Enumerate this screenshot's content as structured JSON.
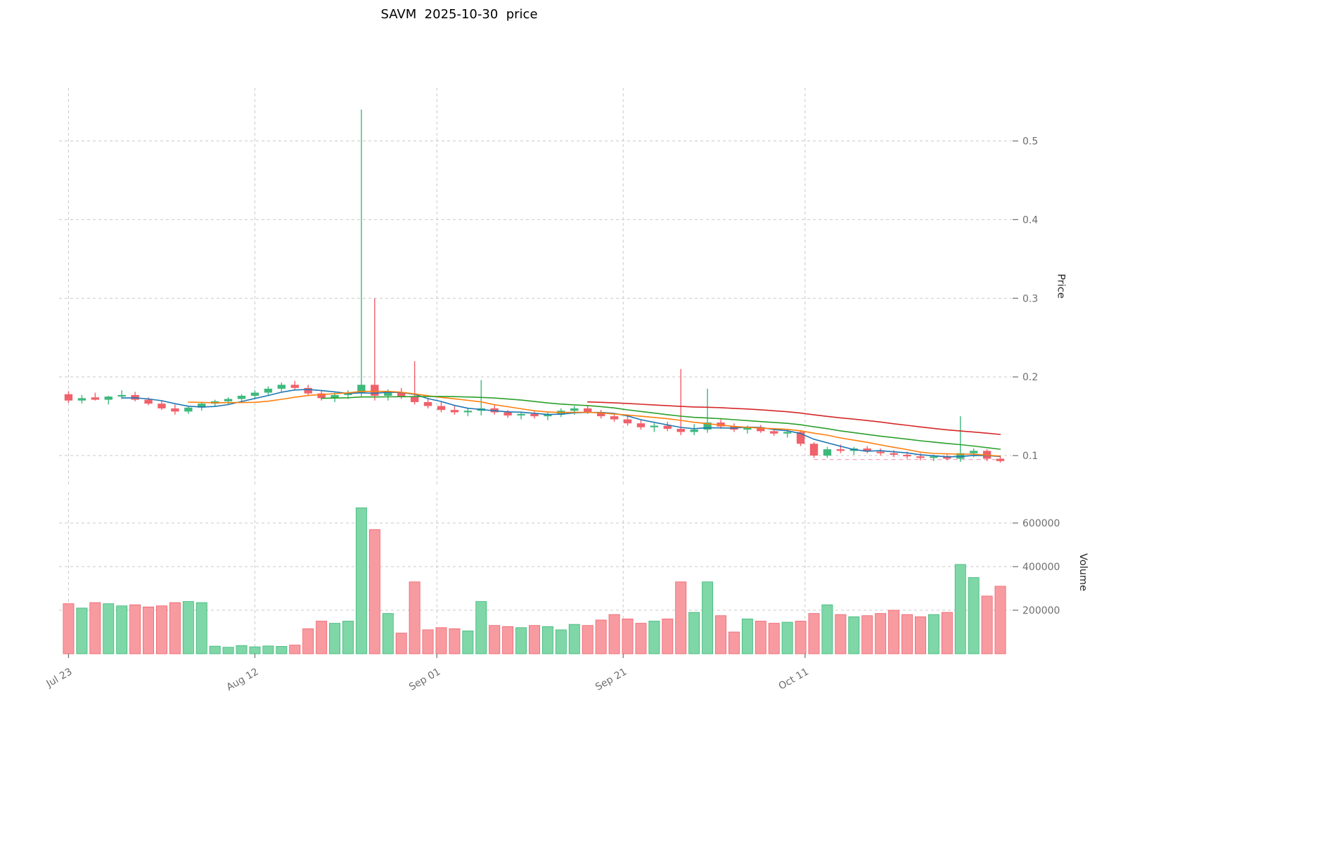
{
  "title": "SAVM  2025-10-30  price",
  "axes": {
    "price_label": "Price",
    "volume_label": "Volume",
    "price_ticks": [
      {
        "value": 0.1,
        "label": "0.1"
      },
      {
        "value": 0.2,
        "label": "0.2"
      },
      {
        "value": 0.3,
        "label": "0.3"
      },
      {
        "value": 0.4,
        "label": "0.4"
      },
      {
        "value": 0.5,
        "label": "0.5"
      }
    ],
    "volume_ticks": [
      {
        "value": 200000,
        "label": "200000"
      },
      {
        "value": 400000,
        "label": "400000"
      },
      {
        "value": 600000,
        "label": "600000"
      }
    ],
    "x_ticks": [
      {
        "index": 0,
        "label": "Jul 23"
      },
      {
        "index": 14,
        "label": "Aug 12"
      },
      {
        "index": 27.67,
        "label": "Sep 01"
      },
      {
        "index": 41.67,
        "label": "Sep 21"
      },
      {
        "index": 55.33,
        "label": "Oct 11"
      }
    ]
  },
  "style": {
    "up_color": "#3db97c",
    "down_color": "#f0616b",
    "volume_up_color": "#7fd6a6",
    "volume_down_color": "#f79ba1",
    "grid_color": "#c9c9c9",
    "tick_color": "#6e6e6e",
    "title_color": "#000000"
  },
  "annotations": {
    "support_line": {
      "price": 0.095,
      "start_index": 56,
      "color": "#f3a6ba"
    }
  },
  "chart_data": {
    "type": "candlestick",
    "symbol": "SAVM",
    "as_of_date": "2025-10-30",
    "grid": true,
    "legend_position": "none",
    "price_ylim": [
      0.0625,
      0.5675
    ],
    "volume_ylim": [
      0,
      742000
    ],
    "columns": [
      "date",
      "open",
      "high",
      "low",
      "close",
      "volume"
    ],
    "moving_averages": [
      {
        "window": 5,
        "color": "#1f77b4"
      },
      {
        "window": 10,
        "color": "#ff7f0e"
      },
      {
        "window": 20,
        "color": "#2ca02c"
      },
      {
        "window": 40,
        "color": "#d62728"
      }
    ],
    "rows": [
      [
        "2025-07-23",
        0.178,
        0.182,
        0.167,
        0.17,
        230000
      ],
      [
        "2025-07-24",
        0.17,
        0.177,
        0.166,
        0.173,
        210000
      ],
      [
        "2025-07-25",
        0.174,
        0.18,
        0.17,
        0.171,
        235000
      ],
      [
        "2025-07-28",
        0.171,
        0.176,
        0.165,
        0.175,
        230000
      ],
      [
        "2025-07-29",
        0.175,
        0.183,
        0.172,
        0.177,
        220000
      ],
      [
        "2025-07-30",
        0.177,
        0.181,
        0.169,
        0.171,
        225000
      ],
      [
        "2025-07-31",
        0.171,
        0.174,
        0.164,
        0.166,
        215000
      ],
      [
        "2025-08-01",
        0.166,
        0.17,
        0.158,
        0.16,
        220000
      ],
      [
        "2025-08-04",
        0.16,
        0.165,
        0.152,
        0.156,
        235000
      ],
      [
        "2025-08-05",
        0.156,
        0.163,
        0.153,
        0.161,
        240000
      ],
      [
        "2025-08-06",
        0.161,
        0.168,
        0.157,
        0.166,
        235000
      ],
      [
        "2025-08-07",
        0.166,
        0.171,
        0.162,
        0.169,
        35000
      ],
      [
        "2025-08-08",
        0.169,
        0.174,
        0.165,
        0.172,
        30000
      ],
      [
        "2025-08-11",
        0.172,
        0.178,
        0.168,
        0.176,
        38000
      ],
      [
        "2025-08-12",
        0.176,
        0.183,
        0.172,
        0.18,
        32000
      ],
      [
        "2025-08-13",
        0.18,
        0.188,
        0.176,
        0.185,
        36000
      ],
      [
        "2025-08-14",
        0.185,
        0.193,
        0.181,
        0.19,
        34000
      ],
      [
        "2025-08-15",
        0.19,
        0.195,
        0.183,
        0.186,
        40000
      ],
      [
        "2025-08-18",
        0.186,
        0.19,
        0.176,
        0.179,
        115000
      ],
      [
        "2025-08-19",
        0.179,
        0.183,
        0.17,
        0.173,
        150000
      ],
      [
        "2025-08-20",
        0.173,
        0.18,
        0.168,
        0.177,
        140000
      ],
      [
        "2025-08-21",
        0.177,
        0.183,
        0.172,
        0.18,
        150000
      ],
      [
        "2025-08-22",
        0.18,
        0.54,
        0.174,
        0.19,
        670000
      ],
      [
        "2025-08-25",
        0.19,
        0.3,
        0.17,
        0.176,
        570000
      ],
      [
        "2025-08-26",
        0.176,
        0.184,
        0.17,
        0.18,
        185000
      ],
      [
        "2025-08-27",
        0.18,
        0.186,
        0.172,
        0.175,
        95000
      ],
      [
        "2025-08-28",
        0.175,
        0.22,
        0.165,
        0.168,
        330000
      ],
      [
        "2025-08-29",
        0.168,
        0.173,
        0.16,
        0.163,
        110000
      ],
      [
        "2025-09-02",
        0.163,
        0.168,
        0.155,
        0.158,
        120000
      ],
      [
        "2025-09-03",
        0.158,
        0.163,
        0.152,
        0.155,
        115000
      ],
      [
        "2025-09-04",
        0.155,
        0.16,
        0.15,
        0.157,
        105000
      ],
      [
        "2025-09-05",
        0.157,
        0.196,
        0.151,
        0.16,
        240000
      ],
      [
        "2025-09-08",
        0.16,
        0.164,
        0.152,
        0.155,
        130000
      ],
      [
        "2025-09-09",
        0.155,
        0.158,
        0.148,
        0.151,
        125000
      ],
      [
        "2025-09-10",
        0.151,
        0.156,
        0.146,
        0.153,
        120000
      ],
      [
        "2025-09-11",
        0.153,
        0.157,
        0.147,
        0.15,
        130000
      ],
      [
        "2025-09-12",
        0.15,
        0.155,
        0.145,
        0.152,
        125000
      ],
      [
        "2025-09-15",
        0.152,
        0.16,
        0.149,
        0.157,
        110000
      ],
      [
        "2025-09-16",
        0.157,
        0.163,
        0.152,
        0.16,
        135000
      ],
      [
        "2025-09-17",
        0.16,
        0.164,
        0.153,
        0.155,
        130000
      ],
      [
        "2025-09-18",
        0.155,
        0.158,
        0.147,
        0.15,
        155000
      ],
      [
        "2025-09-19",
        0.15,
        0.154,
        0.143,
        0.146,
        180000
      ],
      [
        "2025-09-22",
        0.146,
        0.15,
        0.138,
        0.141,
        160000
      ],
      [
        "2025-09-23",
        0.141,
        0.146,
        0.133,
        0.136,
        140000
      ],
      [
        "2025-09-24",
        0.136,
        0.141,
        0.13,
        0.138,
        150000
      ],
      [
        "2025-09-25",
        0.138,
        0.143,
        0.131,
        0.134,
        160000
      ],
      [
        "2025-09-26",
        0.134,
        0.21,
        0.126,
        0.13,
        330000
      ],
      [
        "2025-09-29",
        0.13,
        0.14,
        0.126,
        0.133,
        190000
      ],
      [
        "2025-09-30",
        0.133,
        0.185,
        0.129,
        0.142,
        330000
      ],
      [
        "2025-10-01",
        0.142,
        0.146,
        0.134,
        0.137,
        175000
      ],
      [
        "2025-10-02",
        0.137,
        0.141,
        0.13,
        0.133,
        100000
      ],
      [
        "2025-10-03",
        0.133,
        0.138,
        0.128,
        0.136,
        160000
      ],
      [
        "2025-10-06",
        0.136,
        0.139,
        0.129,
        0.131,
        150000
      ],
      [
        "2025-10-07",
        0.131,
        0.135,
        0.125,
        0.128,
        140000
      ],
      [
        "2025-10-08",
        0.128,
        0.133,
        0.123,
        0.13,
        145000
      ],
      [
        "2025-10-09",
        0.13,
        0.132,
        0.112,
        0.115,
        150000
      ],
      [
        "2025-10-10",
        0.115,
        0.117,
        0.097,
        0.1,
        185000
      ],
      [
        "2025-10-13",
        0.1,
        0.111,
        0.097,
        0.108,
        225000
      ],
      [
        "2025-10-14",
        0.108,
        0.114,
        0.103,
        0.106,
        180000
      ],
      [
        "2025-10-15",
        0.106,
        0.111,
        0.101,
        0.109,
        170000
      ],
      [
        "2025-10-16",
        0.109,
        0.112,
        0.103,
        0.105,
        175000
      ],
      [
        "2025-10-17",
        0.105,
        0.109,
        0.1,
        0.103,
        185000
      ],
      [
        "2025-10-20",
        0.103,
        0.107,
        0.098,
        0.101,
        200000
      ],
      [
        "2025-10-21",
        0.101,
        0.105,
        0.096,
        0.099,
        180000
      ],
      [
        "2025-10-22",
        0.099,
        0.103,
        0.094,
        0.097,
        170000
      ],
      [
        "2025-10-23",
        0.097,
        0.101,
        0.093,
        0.099,
        180000
      ],
      [
        "2025-10-24",
        0.099,
        0.102,
        0.094,
        0.096,
        190000
      ],
      [
        "2025-10-27",
        0.096,
        0.15,
        0.092,
        0.103,
        410000
      ],
      [
        "2025-10-28",
        0.103,
        0.109,
        0.098,
        0.106,
        350000
      ],
      [
        "2025-10-29",
        0.106,
        0.108,
        0.093,
        0.096,
        265000
      ],
      [
        "2025-10-30",
        0.096,
        0.099,
        0.091,
        0.093,
        310000
      ]
    ]
  }
}
